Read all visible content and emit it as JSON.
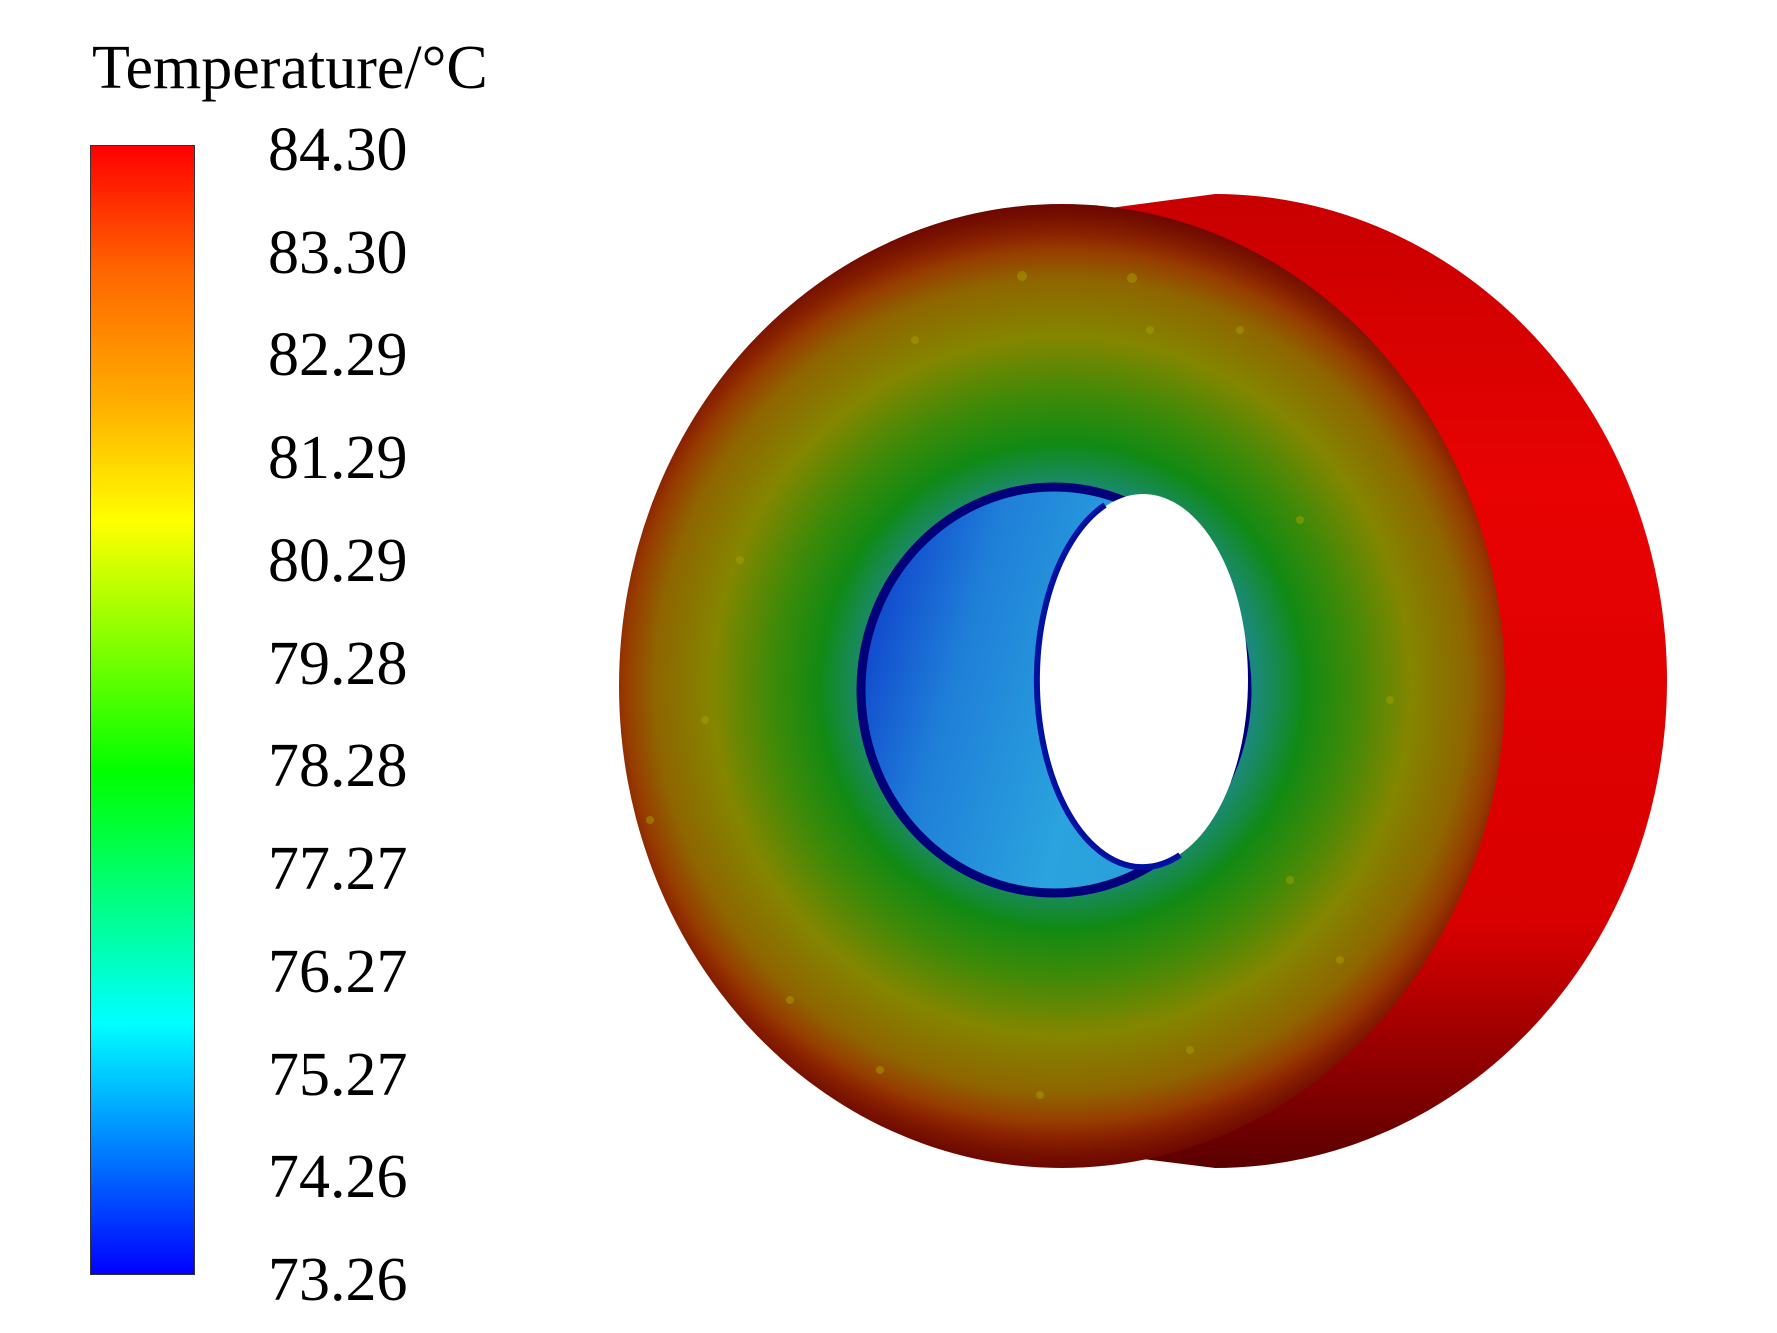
{
  "legend": {
    "title": "Temperature/°C",
    "max": 84.3,
    "min": 73.26,
    "ticks": [
      "84.30",
      "83.30",
      "82.29",
      "81.29",
      "80.29",
      "79.28",
      "78.28",
      "77.27",
      "76.27",
      "75.27",
      "74.26",
      "73.26"
    ],
    "colormap": [
      "#0000ff",
      "#0080ff",
      "#00ffff",
      "#00ff80",
      "#00ff00",
      "#80ff00",
      "#ffff00",
      "#ffaa00",
      "#ff6600",
      "#ff0000"
    ]
  },
  "colors": {
    "outer_red": "#e00000",
    "dark_red": "#7a0a00",
    "olive": "#8a8600",
    "green": "#0e8a10",
    "teal": "#1f7f8f",
    "blue_rim": "#00008a",
    "bore_light": "#29a3df",
    "bore_dark": "#0a3fcf"
  }
}
